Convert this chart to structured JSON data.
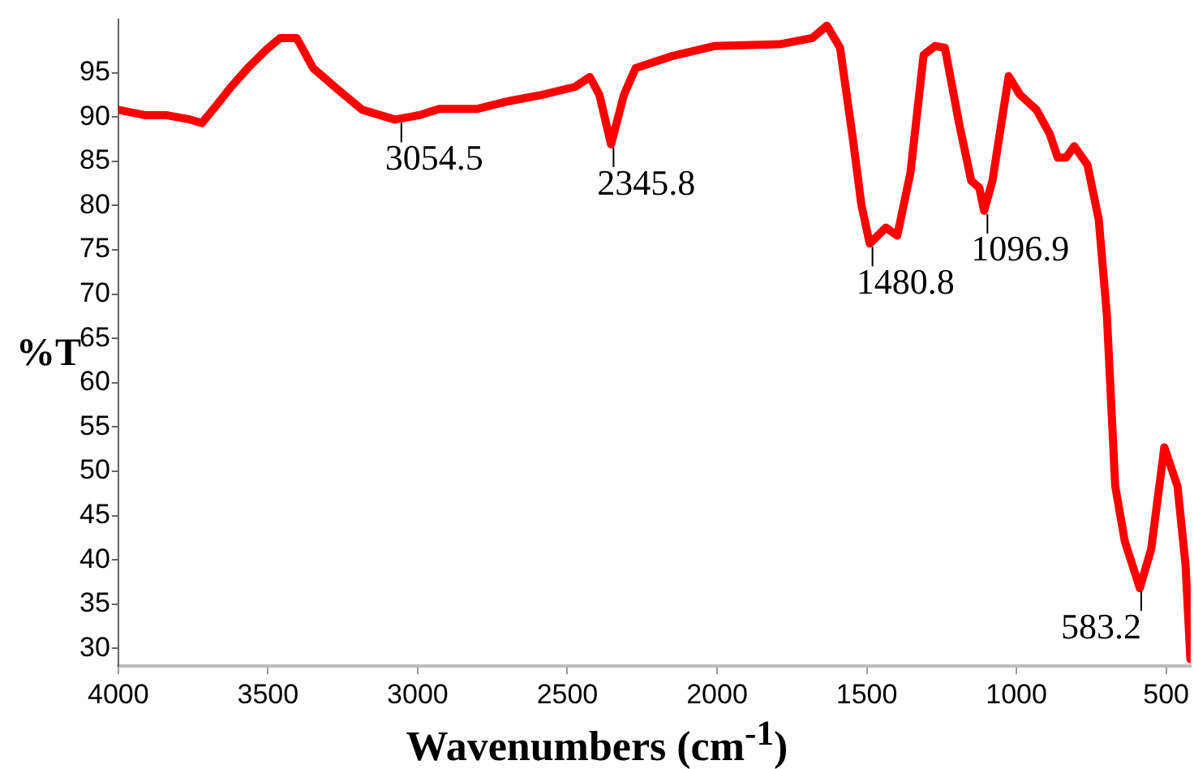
{
  "chart_data": {
    "type": "line",
    "xlabel": "Wavenumbers (cm$^{-1}$)",
    "ylabel": "%T",
    "x": [
      4000,
      3912,
      3841,
      3759,
      3721,
      3677,
      3623,
      3568,
      3502,
      3459,
      3404,
      3349,
      3267,
      3185,
      3076,
      2994,
      2928,
      2803,
      2693,
      2584,
      2474,
      2425,
      2393,
      2354,
      2311,
      2272,
      2147,
      2010,
      1791,
      1682,
      1633,
      1589,
      1545,
      1518,
      1490,
      1436,
      1398,
      1354,
      1310,
      1272,
      1239,
      1190,
      1151,
      1124,
      1108,
      1080,
      1026,
      988,
      933,
      889,
      862,
      834,
      807,
      763,
      725,
      698,
      670,
      638,
      588,
      550,
      506,
      462,
      435,
      419
    ],
    "series": [
      {
        "color": "#ff0000",
        "values": [
          90.8,
          90.2,
          90.2,
          89.7,
          89.3,
          91.1,
          93.4,
          95.5,
          97.7,
          98.9,
          98.9,
          95.5,
          93.1,
          90.8,
          89.7,
          90.2,
          90.9,
          90.9,
          91.8,
          92.5,
          93.4,
          94.5,
          92.5,
          86.9,
          92.5,
          95.5,
          96.9,
          98.0,
          98.2,
          98.9,
          100.3,
          97.8,
          87.2,
          80.1,
          75.7,
          77.5,
          76.6,
          83.7,
          97.0,
          98.0,
          97.8,
          89.0,
          82.8,
          82.0,
          79.4,
          82.8,
          94.6,
          92.5,
          90.8,
          88.1,
          85.4,
          85.4,
          86.7,
          84.6,
          78.4,
          67.7,
          48.3,
          42.1,
          36.8,
          41.2,
          52.7,
          48.3,
          39.4,
          28.8
        ]
      }
    ],
    "xlim": [
      4000,
      418
    ],
    "ylim": [
      28,
      101
    ],
    "xticks": [
      4000,
      3500,
      3000,
      2500,
      2000,
      1500,
      1000,
      500
    ],
    "yticks": [
      30,
      35,
      40,
      45,
      50,
      55,
      60,
      65,
      70,
      75,
      80,
      85,
      90,
      95
    ],
    "annotations": [
      {
        "text": "3054.5",
        "x": 3054.5,
        "y": 89.7
      },
      {
        "text": "2345.8",
        "x": 2345.8,
        "y": 86.9
      },
      {
        "text": "1480.8",
        "x": 1480.8,
        "y": 75.7
      },
      {
        "text": "1096.9",
        "x": 1096.9,
        "y": 79.4
      },
      {
        "text": "583.2",
        "x": 583.2,
        "y": 36.8
      }
    ],
    "grid": false,
    "legend": false,
    "marker": "none",
    "line_style": "solid"
  }
}
